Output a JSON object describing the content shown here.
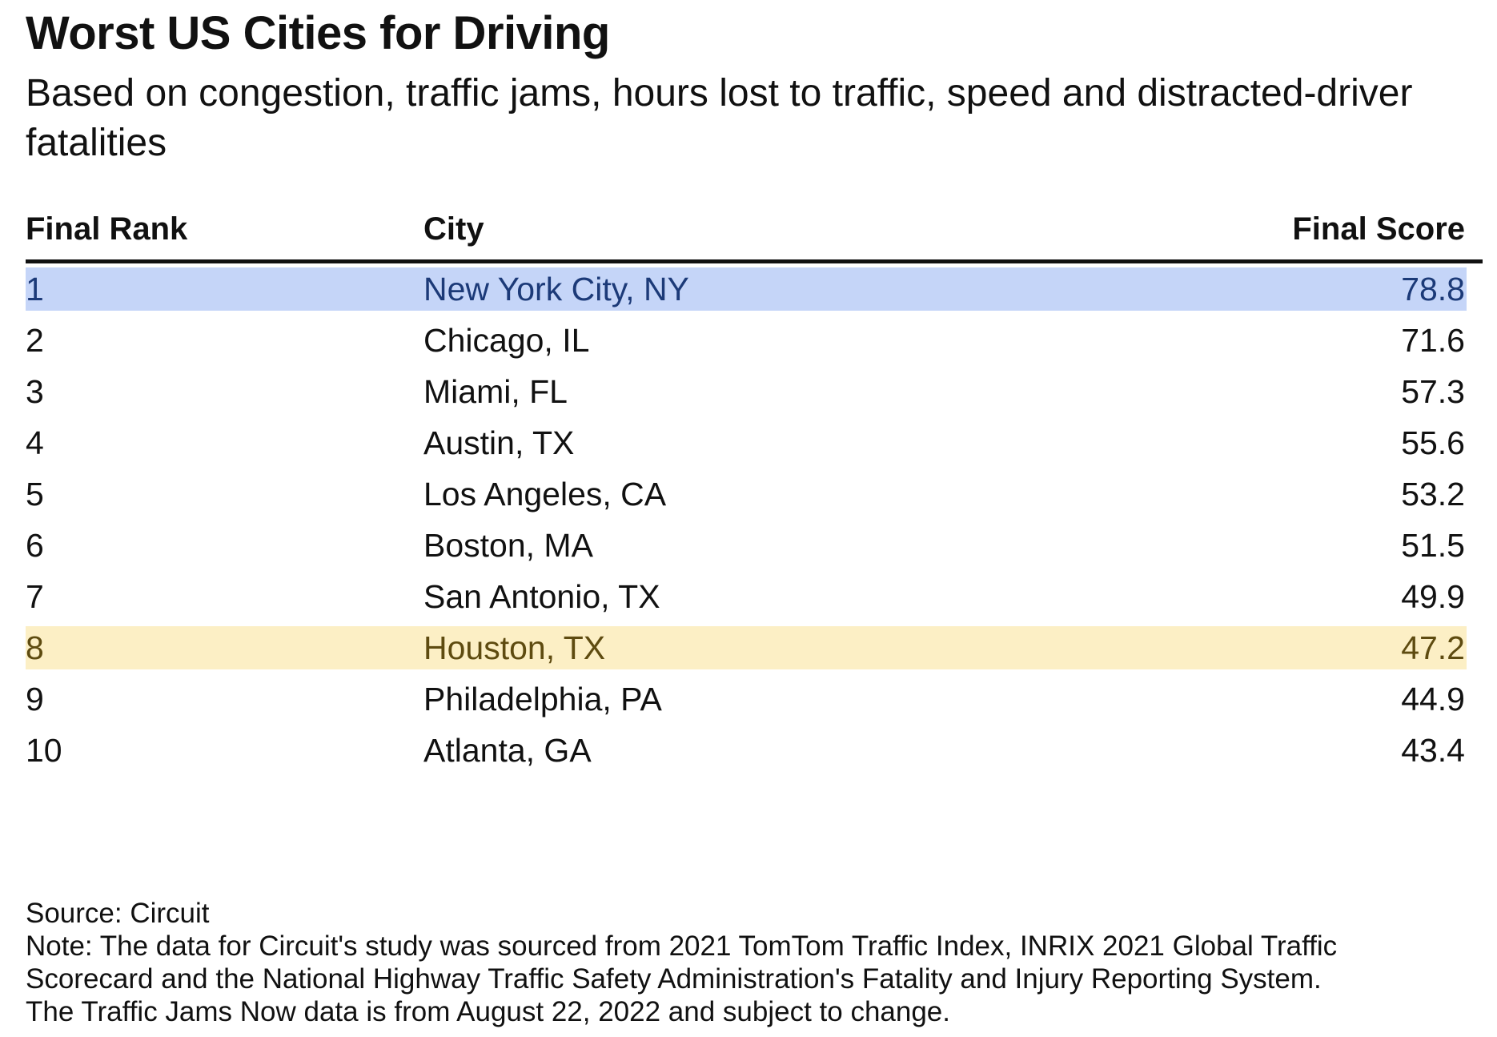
{
  "title": "Worst US Cities for Driving",
  "subtitle": "Based on congestion, traffic jams, hours lost to traffic, speed and distracted-driver fatalities",
  "colors": {
    "highlight_blue": "#c5d5f8",
    "highlight_yellow": "#fcefc5",
    "rule": "#111111"
  },
  "chart_data": {
    "type": "table",
    "title": "Worst US Cities for Driving",
    "subtitle": "Based on congestion, traffic jams, hours lost to traffic, speed and distracted-driver fatalities",
    "columns": [
      "Final Rank",
      "City",
      "Final Score"
    ],
    "rows": [
      {
        "rank": "1",
        "city": "New York City, NY",
        "score": "78.8",
        "highlight": "blue"
      },
      {
        "rank": "2",
        "city": "Chicago, IL",
        "score": "71.6",
        "highlight": ""
      },
      {
        "rank": "3",
        "city": "Miami, FL",
        "score": "57.3",
        "highlight": ""
      },
      {
        "rank": "4",
        "city": "Austin, TX",
        "score": "55.6",
        "highlight": ""
      },
      {
        "rank": "5",
        "city": "Los Angeles, CA",
        "score": "53.2",
        "highlight": ""
      },
      {
        "rank": "6",
        "city": "Boston, MA",
        "score": "51.5",
        "highlight": ""
      },
      {
        "rank": "7",
        "city": "San Antonio, TX",
        "score": "49.9",
        "highlight": ""
      },
      {
        "rank": "8",
        "city": "Houston, TX",
        "score": "47.2",
        "highlight": "yellow"
      },
      {
        "rank": "9",
        "city": "Philadelphia, PA",
        "score": "44.9",
        "highlight": ""
      },
      {
        "rank": "10",
        "city": "Atlanta, GA",
        "score": "43.4",
        "highlight": ""
      }
    ]
  },
  "footer": {
    "source": "Source: Circuit",
    "note_lines": [
      "Note: The data for Circuit's study was sourced from 2021 TomTom Traffic Index, INRIX 2021 Global Traffic",
      "Scorecard and the National Highway Traffic Safety Administration's Fatality and Injury Reporting System.",
      "The Traffic Jams Now data is from August 22, 2022 and subject to change."
    ]
  }
}
